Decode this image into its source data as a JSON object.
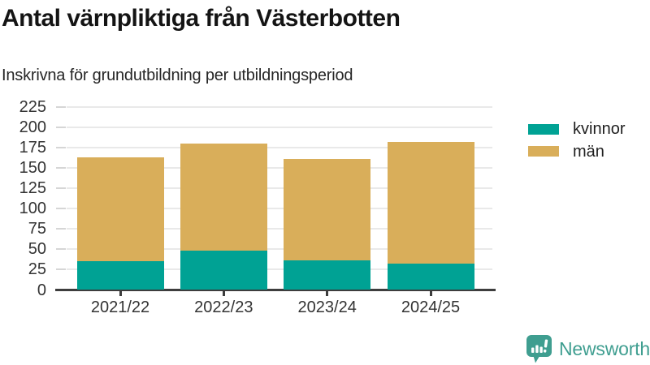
{
  "header": {
    "title": "Antal värnpliktiga från Västerbotten",
    "subtitle": "Inskrivna för grundutbildning per utbildningsperiod"
  },
  "chart_data": {
    "type": "bar",
    "stacked": true,
    "title": "Antal värnpliktiga från Västerbotten",
    "subtitle": "Inskrivna för grundutbildning per utbildningsperiod",
    "categories": [
      "2021/22",
      "2022/23",
      "2023/24",
      "2024/25"
    ],
    "series": [
      {
        "name": "kvinnor",
        "color": "#00a294",
        "values": [
          35,
          48,
          36,
          32
        ]
      },
      {
        "name": "män",
        "color": "#d9ae5a",
        "values": [
          128,
          132,
          125,
          150
        ]
      }
    ],
    "stack_totals": [
      163,
      180,
      161,
      182
    ],
    "xlabel": "",
    "ylabel": "",
    "ylim": [
      0,
      225
    ],
    "yticks": [
      0,
      25,
      50,
      75,
      100,
      125,
      150,
      175,
      200,
      225
    ],
    "grid": "horizontal",
    "legend_position": "right"
  },
  "legend": {
    "items": [
      {
        "label": "kvinnor",
        "color": "#00a294"
      },
      {
        "label": "män",
        "color": "#d9ae5a"
      }
    ]
  },
  "branding": {
    "logo_text": "Newsworthy",
    "logo_icon": "newsworthy-speech-bubble-bar-chart-icon",
    "logo_color": "#3f9e90"
  },
  "colors": {
    "kvinnor": "#00a294",
    "man": "#d9ae5a",
    "axis": "#3d3d3d",
    "gridline": "#e9e9e9",
    "tick_label": "#333333"
  }
}
